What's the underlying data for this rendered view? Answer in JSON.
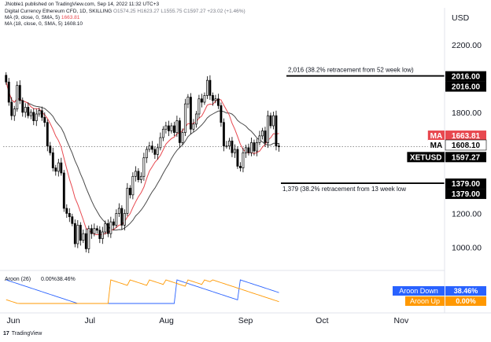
{
  "header": {
    "published": "JNoble1 published on TradingView.com, Sep 14, 2022 11:32 UTC+3",
    "symbol_line": "Digital Currency Ethereum CFD, 1D, SKILLING",
    "ohlc": "O1574.25  H1623.27  L1555.75  C1597.27  +23.02 (+1.46%)",
    "ma1_label": "MA (9, close, 0, SMA, 5)",
    "ma1_value": "1663.81",
    "ma2_label": "MA (18, close, 0, SMA, 5)",
    "ma2_value": "1608.10"
  },
  "footer": {
    "logo": "17",
    "brand": "TradingView"
  },
  "colors": {
    "up": "#2a2a2a",
    "down": "#000000",
    "ma9": "#e8484f",
    "ma18": "#4a4a4a",
    "aroon_down": "#2962ff",
    "aroon_up": "#ff9800",
    "level": "#000000",
    "ma_tag": "#e8484f"
  },
  "chart_data": {
    "type": "candlestick",
    "currency": "USD",
    "y_ticks": [
      "2200.00",
      "1800.00",
      "1200.00",
      "1000.00"
    ],
    "y_tick_values": [
      2200,
      1800,
      1200,
      1000
    ],
    "ylim": [
      880,
      2280
    ],
    "x_labels": [
      "Jun",
      "Jul",
      "Aug",
      "Sep",
      "Oct",
      "Nov"
    ],
    "x_label_days": [
      4,
      34,
      64,
      95,
      125,
      156
    ],
    "x_range_days": [
      0,
      173
    ],
    "annotations": [
      {
        "text": "2,016 (38.2% retracement from 52 week low)",
        "price": 2016
      },
      {
        "text": "1,379 (38.2% retracement from 13 week low",
        "price": 1379
      }
    ],
    "price_tags": [
      {
        "label": "",
        "value": "2016.00",
        "price": 2016,
        "role": "level"
      },
      {
        "label": "",
        "value": "2016.00",
        "price": 2016,
        "role": "level"
      },
      {
        "label": "MA",
        "value": "1663.81",
        "price": 1663.81,
        "role": "ma9"
      },
      {
        "label": "MA",
        "value": "1608.10",
        "price": 1608.1,
        "role": "ma18"
      },
      {
        "label": "XETUSD",
        "value": "1597.27",
        "price": 1597.27,
        "role": "last"
      },
      {
        "label": "",
        "value": "1379.00",
        "price": 1379,
        "role": "level"
      },
      {
        "label": "",
        "value": "1379.00",
        "price": 1379,
        "role": "level"
      }
    ],
    "candles_close": [
      1980,
      1860,
      1780,
      1820,
      1960,
      1870,
      1800,
      1830,
      1780,
      1800,
      1750,
      1790,
      1810,
      1770,
      1740,
      1600,
      1560,
      1470,
      1450,
      1500,
      1440,
      1230,
      1200,
      1180,
      1140,
      1020,
      1130,
      1040,
      1080,
      990,
      1110,
      1080,
      1110,
      1100,
      1050,
      1090,
      1140,
      1080,
      1150,
      1130,
      1200,
      1230,
      1130,
      1200,
      1350,
      1310,
      1420,
      1450,
      1400,
      1420,
      1530,
      1580,
      1600,
      1580,
      1550,
      1590,
      1650,
      1700,
      1720,
      1690,
      1720,
      1680,
      1750,
      1620,
      1680,
      1850,
      1890,
      1700,
      1730,
      1790,
      1880,
      1860,
      1900,
      1990,
      1900,
      1870,
      1880,
      1840,
      1740,
      1600,
      1600,
      1630,
      1560,
      1580,
      1480,
      1470,
      1560,
      1590,
      1560,
      1620,
      1570,
      1620,
      1660,
      1690,
      1620,
      1780,
      1720,
      1780,
      1600,
      1597
    ],
    "ma9_last": 1663.81,
    "ma18_last": 1608.1,
    "aroon": {
      "label": "Aroon (26)",
      "up_value": "0.00%",
      "down_value": "38.46%",
      "down_name": "Aroon Down",
      "up_name": "Aroon Up"
    }
  }
}
